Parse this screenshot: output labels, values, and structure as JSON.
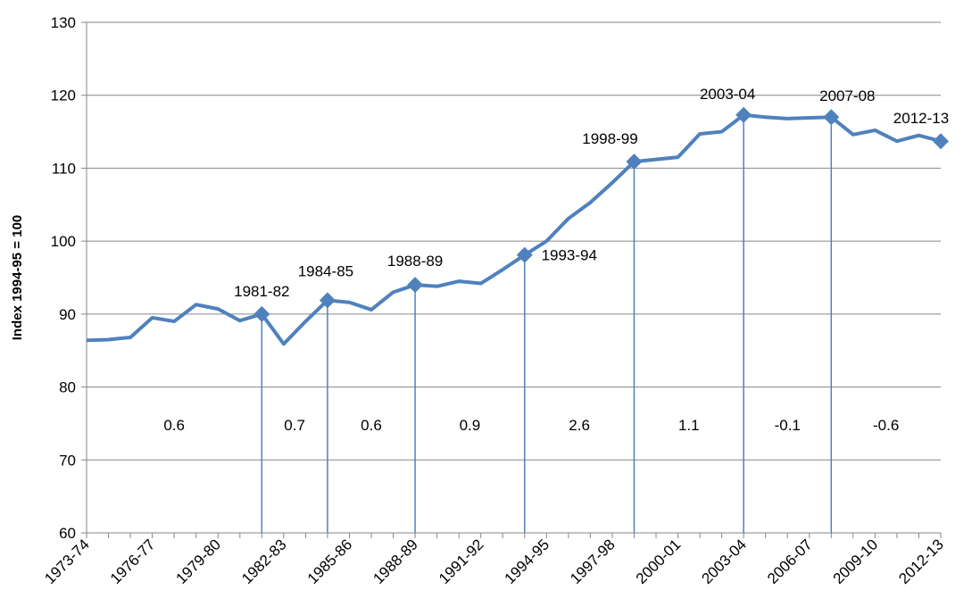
{
  "chart_data": {
    "type": "line",
    "y_label": "Index 1994-95 = 100",
    "categories": [
      "1973-74",
      null,
      null,
      "1976-77",
      null,
      null,
      "1979-80",
      null,
      null,
      "1982-83",
      null,
      null,
      "1985-86",
      null,
      null,
      "1988-89",
      null,
      null,
      "1991-92",
      null,
      null,
      "1994-95",
      null,
      null,
      "1997-98",
      null,
      null,
      "2000-01",
      null,
      null,
      "2003-04",
      null,
      null,
      "2006-07",
      null,
      null,
      "2009-10",
      null,
      null,
      "2012-13"
    ],
    "series": [
      {
        "name": "Index",
        "color": "#4f81bd",
        "values": [
          86.4,
          86.5,
          86.8,
          89.5,
          89.0,
          91.3,
          90.7,
          89.1,
          90.0,
          85.9,
          89.0,
          91.9,
          91.6,
          90.6,
          93.0,
          94.0,
          93.8,
          94.5,
          94.2,
          96.1,
          98.1,
          100.0,
          103.1,
          105.3,
          108.0,
          110.9,
          111.2,
          111.5,
          114.7,
          115.0,
          117.3,
          117.0,
          116.8,
          116.9,
          117.0,
          114.6,
          115.2,
          113.7,
          114.5,
          113.7
        ]
      }
    ],
    "markers": [
      {
        "index": 8,
        "label": "1981-82"
      },
      {
        "index": 11,
        "label": "1984-85"
      },
      {
        "index": 15,
        "label": "1988-89"
      },
      {
        "index": 20,
        "label": "1993-94"
      },
      {
        "index": 25,
        "label": "1998-99"
      },
      {
        "index": 30,
        "label": "2003-04"
      },
      {
        "index": 34,
        "label": "2007-08"
      },
      {
        "index": 39,
        "label": "2012-13"
      }
    ],
    "period_growth": [
      0.6,
      0.7,
      0.6,
      0.9,
      2.6,
      1.1,
      -0.1,
      -0.6
    ],
    "ylim": [
      60,
      130
    ],
    "yticks": [
      60,
      70,
      80,
      90,
      100,
      110,
      120,
      130
    ],
    "grid": true
  }
}
